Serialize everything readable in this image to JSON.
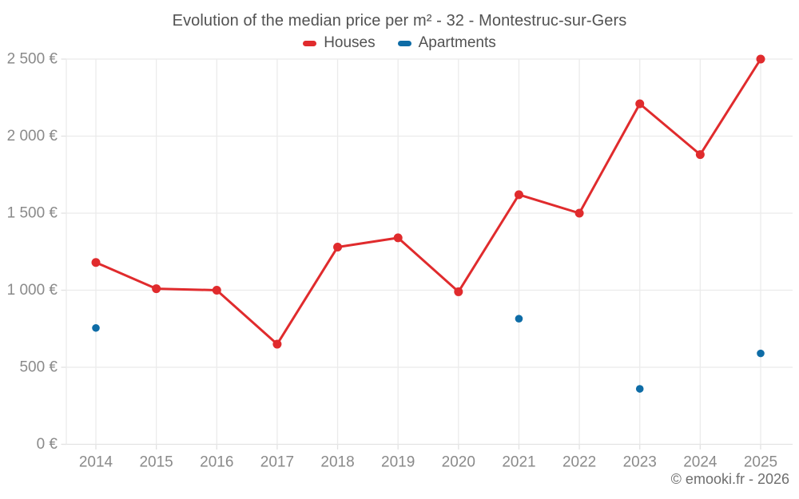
{
  "page": {
    "footer": "© emooki.fr - 2026"
  },
  "chart_data": {
    "type": "line",
    "title": "Evolution of the median price per m² - 32 - Montestruc-sur-Gers",
    "xlabel": "",
    "ylabel": "",
    "x": [
      "2014",
      "2015",
      "2016",
      "2017",
      "2018",
      "2019",
      "2020",
      "2021",
      "2022",
      "2023",
      "2024",
      "2025"
    ],
    "series": [
      {
        "name": "Houses",
        "type": "line",
        "color": "#e02b2d",
        "values": [
          1180,
          1010,
          1000,
          650,
          1280,
          1340,
          990,
          1620,
          1500,
          2210,
          1880,
          2500
        ]
      },
      {
        "name": "Apartments",
        "type": "scatter",
        "color": "#0e6ca6",
        "values": [
          755,
          null,
          null,
          null,
          null,
          null,
          null,
          815,
          null,
          360,
          null,
          590
        ]
      }
    ],
    "ylim": [
      0,
      2500
    ],
    "yticks": [
      {
        "value": 0,
        "label": "0 €"
      },
      {
        "value": 500,
        "label": "500 €"
      },
      {
        "value": 1000,
        "label": "1 000 €"
      },
      {
        "value": 1500,
        "label": "1 500 €"
      },
      {
        "value": 2000,
        "label": "2 000 €"
      },
      {
        "value": 2500,
        "label": "2 500 €"
      }
    ],
    "grid": true,
    "legend_position": "top",
    "grid_color": "#ebebeb",
    "axis_line_color": "#e2e2e2",
    "tick_text_color": "#8a8a8a",
    "title_text_color": "#525252"
  }
}
